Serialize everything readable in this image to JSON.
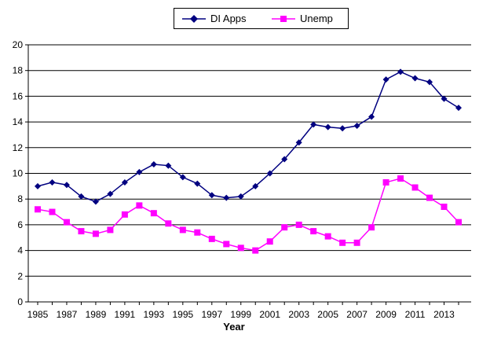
{
  "chart_data": {
    "type": "line",
    "title": "",
    "xlabel": "Year",
    "ylabel": "",
    "ylim": [
      0,
      20
    ],
    "yticks": [
      "0",
      "2",
      "4",
      "6",
      "8",
      "10",
      "12",
      "14",
      "16",
      "18",
      "20"
    ],
    "x": [
      1985,
      1986,
      1987,
      1988,
      1989,
      1990,
      1991,
      1992,
      1993,
      1994,
      1995,
      1996,
      1997,
      1998,
      1999,
      2000,
      2001,
      2002,
      2003,
      2004,
      2005,
      2006,
      2007,
      2008,
      2009,
      2010,
      2011,
      2012,
      2013,
      2014
    ],
    "xticks": [
      "1985",
      "1987",
      "1989",
      "1991",
      "1993",
      "1995",
      "1997",
      "1999",
      "2001",
      "2003",
      "2005",
      "2007",
      "2009",
      "2011",
      "2013"
    ],
    "grid": true,
    "legend_position": "top-center",
    "series": [
      {
        "name": "DI Apps",
        "color": "#000080",
        "marker": "diamond",
        "values": [
          9.0,
          9.3,
          9.1,
          8.2,
          7.8,
          8.4,
          9.3,
          10.1,
          10.7,
          10.6,
          9.7,
          9.2,
          8.3,
          8.1,
          8.2,
          9.0,
          10.0,
          11.1,
          12.4,
          13.8,
          13.6,
          13.5,
          13.7,
          14.4,
          17.3,
          17.9,
          17.4,
          17.1,
          15.8,
          15.1
        ]
      },
      {
        "name": "Unemp",
        "color": "#ff00ff",
        "marker": "square",
        "values": [
          7.2,
          7.0,
          6.2,
          5.5,
          5.3,
          5.6,
          6.8,
          7.5,
          6.9,
          6.1,
          5.6,
          5.4,
          4.9,
          4.5,
          4.2,
          4.0,
          4.7,
          5.8,
          6.0,
          5.5,
          5.1,
          4.6,
          4.6,
          5.8,
          9.3,
          9.6,
          8.9,
          8.1,
          7.4,
          6.2
        ]
      }
    ]
  }
}
